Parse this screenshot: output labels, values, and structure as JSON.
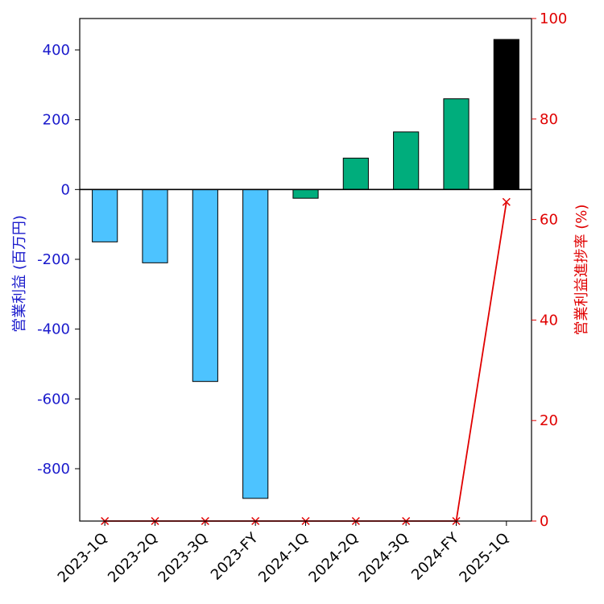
{
  "chart_data": {
    "type": "bar",
    "categories": [
      "2023-1Q",
      "2023-2Q",
      "2023-3Q",
      "2023-FY",
      "2024-1Q",
      "2024-2Q",
      "2024-3Q",
      "2024-FY",
      "2025-1Q"
    ],
    "series": [
      {
        "values": [
          -150,
          -210,
          -550,
          -885,
          -25,
          90,
          165,
          260,
          430
        ],
        "colors": [
          "#4dc3ff",
          "#4dc3ff",
          "#4dc3ff",
          "#4dc3ff",
          "#00ad7c",
          "#00ad7c",
          "#00ad7c",
          "#00ad7c",
          "#000000"
        ],
        "axis": "left"
      },
      {
        "type": "line",
        "values": [
          0,
          0,
          0,
          0,
          0,
          0,
          0,
          0,
          63.5
        ],
        "color": "#e00000",
        "marker": "x",
        "axis": "right"
      }
    ],
    "ylabel": "営業利益 (百万円)",
    "y2label": "営業利益進捗率 (%)",
    "ylim": [
      -950,
      490
    ],
    "y2lim": [
      0,
      100
    ],
    "yticks": [
      -800,
      -600,
      -400,
      -200,
      0,
      200,
      400
    ],
    "y2ticks": [
      0,
      20,
      40,
      60,
      80,
      100
    ],
    "left_axis_color": "#1a1acc",
    "right_axis_color": "#e00000",
    "grid": false
  }
}
